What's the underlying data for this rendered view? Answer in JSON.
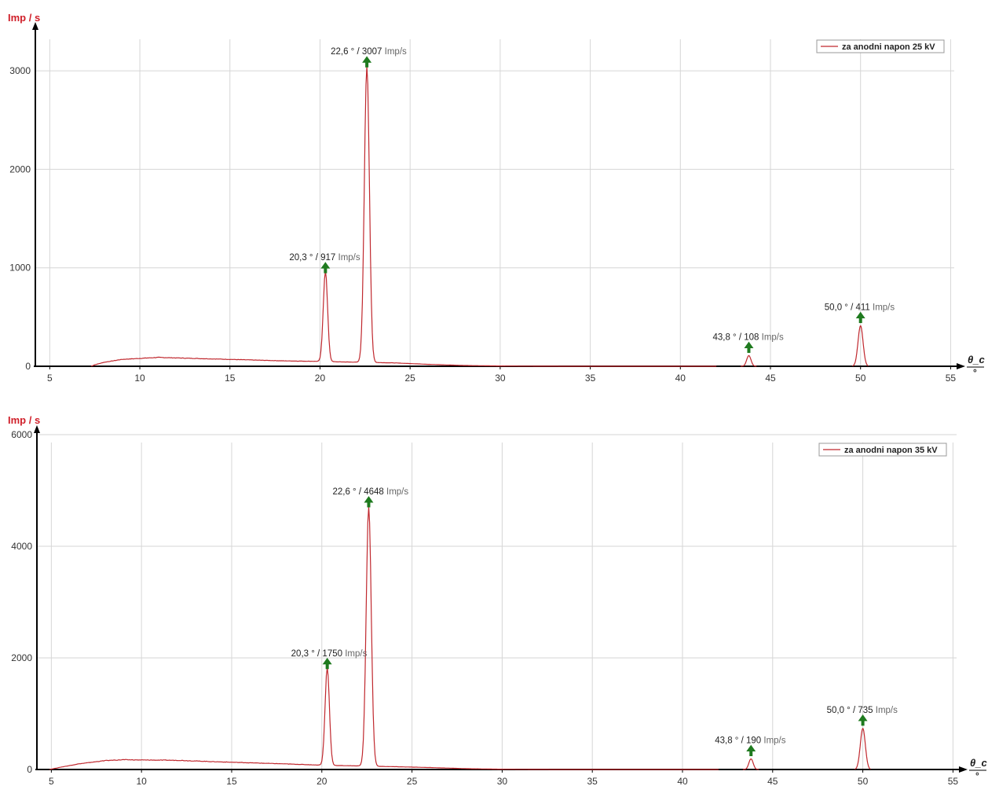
{
  "chart_data": [
    {
      "type": "line",
      "ylabel": "Imp / s",
      "xlabel": "θ_c",
      "xunit": "°",
      "xlim": [
        4.2,
        55.2
      ],
      "ylim": [
        0,
        3400
      ],
      "xticks": [
        5,
        10,
        15,
        20,
        25,
        30,
        35,
        40,
        45,
        50,
        55
      ],
      "yticks": [
        0,
        1000,
        2000,
        3000
      ],
      "grid": true,
      "legend_position": "top-right",
      "series": [
        {
          "name": "za anodni napon 25 kV",
          "color": "#c0282e",
          "background": [
            [
              7.3,
              0
            ],
            [
              7.5,
              15
            ],
            [
              8,
              40
            ],
            [
              9,
              70
            ],
            [
              10,
              80
            ],
            [
              11,
              90
            ],
            [
              12,
              85
            ],
            [
              14,
              75
            ],
            [
              16,
              65
            ],
            [
              18,
              55
            ],
            [
              19.8,
              50
            ],
            [
              21,
              45
            ],
            [
              22,
              42
            ],
            [
              24,
              35
            ],
            [
              26,
              20
            ],
            [
              28,
              8
            ],
            [
              30,
              3
            ],
            [
              32,
              1
            ],
            [
              34,
              0
            ],
            [
              42,
              0
            ]
          ],
          "peaks": [
            {
              "x": 20.3,
              "y": 917,
              "width": 0.12
            },
            {
              "x": 22.6,
              "y": 3007,
              "width": 0.14
            },
            {
              "x": 43.8,
              "y": 108,
              "width": 0.12
            },
            {
              "x": 50.0,
              "y": 411,
              "width": 0.14
            }
          ]
        }
      ],
      "annotations": [
        {
          "x": 20.3,
          "y": 917,
          "text": "20,3 ° / 917",
          "unit": "Imp/s"
        },
        {
          "x": 22.6,
          "y": 3007,
          "text": "22,6 ° / 3007",
          "unit": "Imp/s"
        },
        {
          "x": 43.8,
          "y": 108,
          "text": "43,8 ° / 108",
          "unit": "Imp/s"
        },
        {
          "x": 50.0,
          "y": 411,
          "text": "50,0 ° / 411",
          "unit": "Imp/s"
        }
      ]
    },
    {
      "type": "line",
      "ylabel": "Imp / s",
      "xlabel": "θ_c",
      "xunit": "°",
      "xlim": [
        4.2,
        55.2
      ],
      "ylim": [
        0,
        6000
      ],
      "xticks": [
        5,
        10,
        15,
        20,
        25,
        30,
        35,
        40,
        45,
        50,
        55
      ],
      "yticks": [
        0,
        2000,
        4000,
        6000
      ],
      "grid": true,
      "legend_position": "top-right",
      "series": [
        {
          "name": "za anodni napon 35 kV",
          "color": "#c0282e",
          "background": [
            [
              4.9,
              0
            ],
            [
              5.5,
              40
            ],
            [
              6.5,
              100
            ],
            [
              8,
              160
            ],
            [
              9,
              175
            ],
            [
              10,
              170
            ],
            [
              12,
              165
            ],
            [
              14,
              140
            ],
            [
              16,
              120
            ],
            [
              18,
              100
            ],
            [
              19.8,
              80
            ],
            [
              21,
              70
            ],
            [
              22,
              65
            ],
            [
              24,
              50
            ],
            [
              26,
              35
            ],
            [
              28,
              15
            ],
            [
              30,
              5
            ],
            [
              32,
              1
            ],
            [
              34,
              0
            ],
            [
              42,
              0
            ]
          ],
          "peaks": [
            {
              "x": 20.3,
              "y": 1750,
              "width": 0.12
            },
            {
              "x": 22.6,
              "y": 4648,
              "width": 0.14
            },
            {
              "x": 43.8,
              "y": 190,
              "width": 0.12
            },
            {
              "x": 50.0,
              "y": 735,
              "width": 0.14
            }
          ]
        }
      ],
      "annotations": [
        {
          "x": 20.3,
          "y": 1750,
          "text": "20,3 ° / 1750",
          "unit": "Imp/s"
        },
        {
          "x": 22.6,
          "y": 4648,
          "text": "22,6 ° / 4648",
          "unit": "Imp/s"
        },
        {
          "x": 43.8,
          "y": 190,
          "text": "43,8 ° / 190",
          "unit": "Imp/s"
        },
        {
          "x": 50.0,
          "y": 735,
          "text": "50,0 ° / 735",
          "unit": "Imp/s"
        }
      ]
    }
  ]
}
